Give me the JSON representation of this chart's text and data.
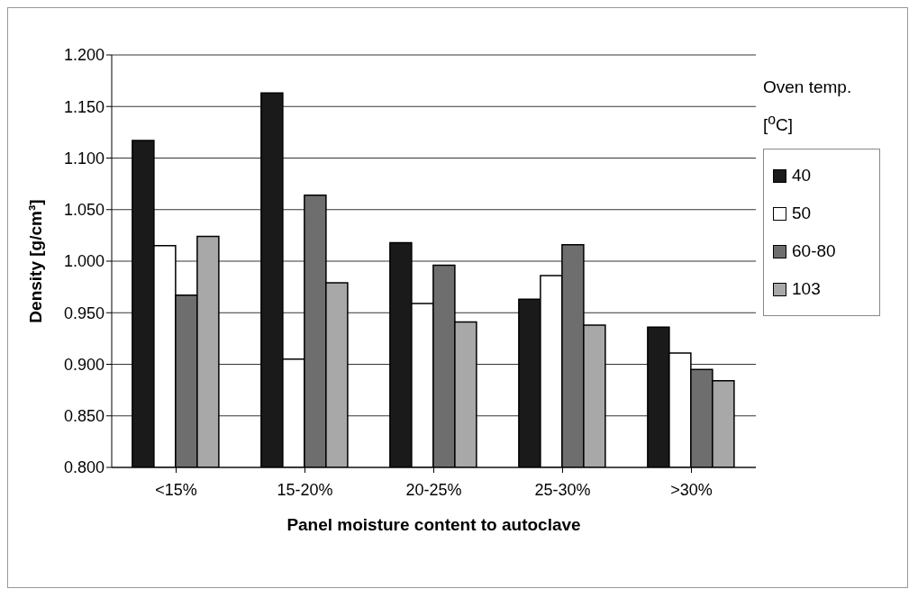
{
  "chart_data": {
    "type": "bar",
    "xlabel": "Panel moisture content to autoclave",
    "ylabel": "Density [g/cm³]",
    "legend_title": "Oven temp. [$^{o}$C]",
    "categories": [
      "<15%",
      "15-20%",
      "20-25%",
      "25-30%",
      ">30%"
    ],
    "series": [
      {
        "name": "40",
        "color": "#1a1a1a",
        "values": [
          1.117,
          1.163,
          1.018,
          0.963,
          0.936
        ]
      },
      {
        "name": "50",
        "color": "#ffffff",
        "values": [
          1.015,
          0.905,
          0.959,
          0.986,
          0.911
        ]
      },
      {
        "name": "60-80",
        "color": "#6e6e6e",
        "values": [
          0.967,
          1.064,
          0.996,
          1.016,
          0.895
        ]
      },
      {
        "name": "103",
        "color": "#a8a8a8",
        "values": [
          1.024,
          0.979,
          0.941,
          0.938,
          0.884
        ]
      }
    ],
    "ylim": [
      0.8,
      1.2
    ],
    "yticks": [
      {
        "value": 0.8,
        "label": "0.800"
      },
      {
        "value": 0.85,
        "label": "0.850"
      },
      {
        "value": 0.9,
        "label": "0.900"
      },
      {
        "value": 0.95,
        "label": "0.950"
      },
      {
        "value": 1.0,
        "label": "1.000"
      },
      {
        "value": 1.05,
        "label": "1.050"
      },
      {
        "value": 1.1,
        "label": "1.100"
      },
      {
        "value": 1.15,
        "label": "1.150"
      },
      {
        "value": 1.2,
        "label": "1.200"
      }
    ],
    "grid": "y",
    "legend": "right"
  }
}
